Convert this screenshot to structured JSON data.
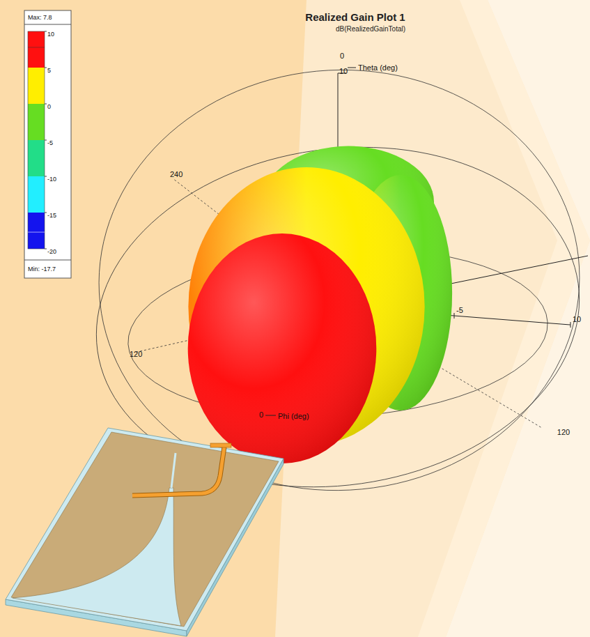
{
  "chart_data": {
    "type": "3d_polar",
    "title": "Realized Gain Plot 1",
    "subtitle": "dB(RealizedGainTotal)",
    "colorbar": {
      "ticks": [
        10,
        5,
        0,
        -5,
        -10,
        -15,
        -20
      ],
      "colors": [
        "#ff1010",
        "#ffee00",
        "#66dd22",
        "#22dd88",
        "#22eeff",
        "#1414ee"
      ]
    },
    "max": {
      "value": 7.8,
      "label": "Max: 7.8"
    },
    "min": {
      "value": -17.7,
      "label": "Min: -17.7"
    },
    "theta_label": "Theta (deg)",
    "theta_ticks": [
      0,
      120
    ],
    "phi_label": "Phi (deg)",
    "phi_ticks": [
      0,
      120,
      240
    ],
    "rlim": [
      -20,
      10
    ],
    "radial_ticks": [
      -5,
      10
    ],
    "pattern": {
      "values": [
        -2,
        -1,
        4,
        7.8
      ]
    }
  }
}
